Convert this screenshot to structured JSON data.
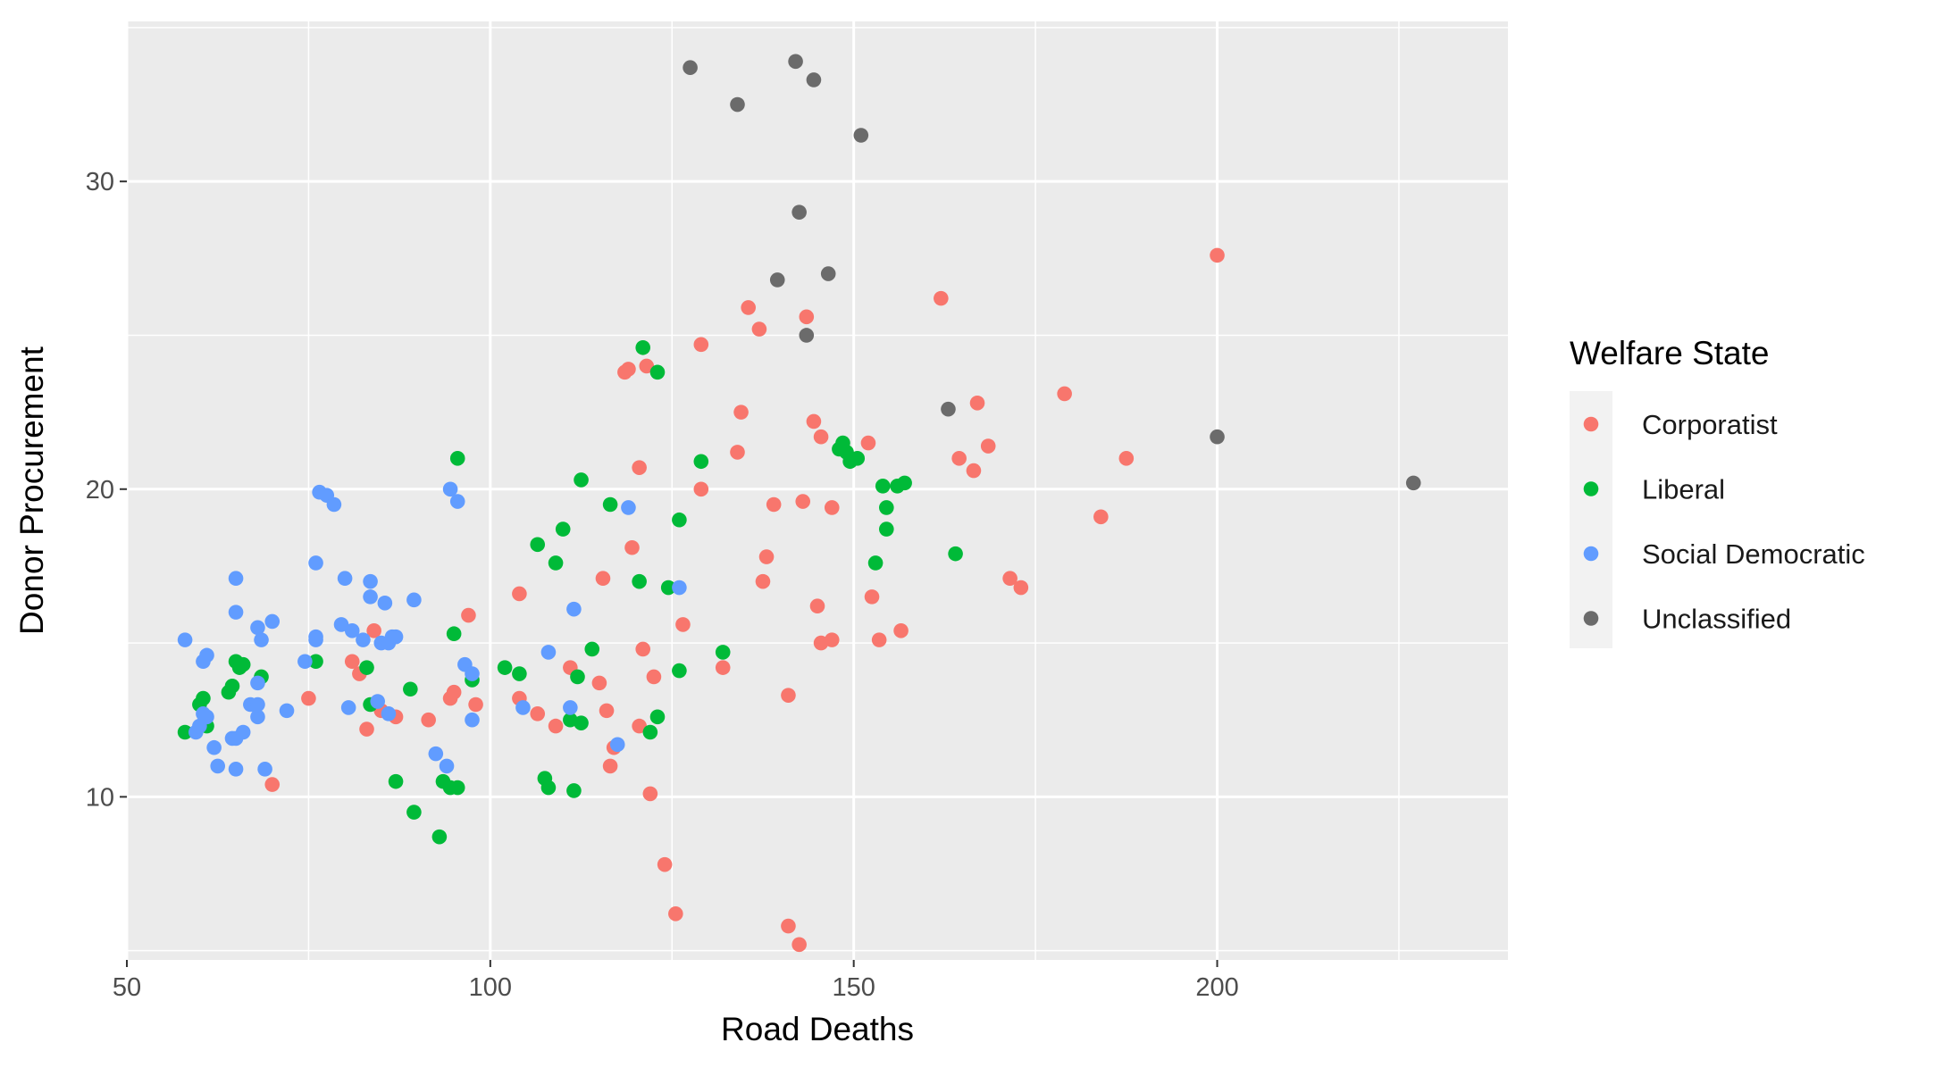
{
  "chart_data": {
    "type": "scatter",
    "xlabel": "Road Deaths",
    "ylabel": "Donor Procurement",
    "xlim": [
      50,
      240
    ],
    "ylim": [
      4.7,
      35.2
    ],
    "x_ticks": [
      50,
      100,
      150,
      200
    ],
    "y_ticks": [
      10,
      20,
      30
    ],
    "grid": true,
    "legend": {
      "title": "Welfare State",
      "position": "right"
    },
    "colors": {
      "panel": "#EBEBEB",
      "grid_major": "#FFFFFF",
      "grid_minor": "#F5F5F5",
      "Corporatist": "#F8766D",
      "Liberal": "#00BA38",
      "Social Democratic": "#619CFF",
      "Unclassified": "#6B6B6B"
    },
    "series": [
      {
        "name": "Corporatist",
        "points": [
          [
            70,
            10.4
          ],
          [
            75,
            13.2
          ],
          [
            81,
            14.4
          ],
          [
            82,
            14.0
          ],
          [
            83,
            12.2
          ],
          [
            84,
            15.4
          ],
          [
            85,
            12.8
          ],
          [
            87,
            12.6
          ],
          [
            91.5,
            12.5
          ],
          [
            94.5,
            13.2
          ],
          [
            95,
            13.4
          ],
          [
            97,
            15.9
          ],
          [
            98,
            13.0
          ],
          [
            104,
            16.6
          ],
          [
            104,
            13.2
          ],
          [
            106.5,
            12.7
          ],
          [
            109,
            12.3
          ],
          [
            111,
            14.2
          ],
          [
            115,
            13.7
          ],
          [
            115.5,
            17.1
          ],
          [
            116,
            12.8
          ],
          [
            116.5,
            11.0
          ],
          [
            117,
            11.6
          ],
          [
            118.5,
            23.8
          ],
          [
            119,
            23.9
          ],
          [
            119.5,
            18.1
          ],
          [
            120.5,
            20.7
          ],
          [
            120.5,
            12.3
          ],
          [
            121,
            14.8
          ],
          [
            121.5,
            24.0
          ],
          [
            122,
            10.1
          ],
          [
            122.5,
            13.9
          ],
          [
            124,
            7.8
          ],
          [
            125.5,
            6.2
          ],
          [
            126.5,
            15.6
          ],
          [
            129,
            24.7
          ],
          [
            129,
            20.0
          ],
          [
            132,
            14.2
          ],
          [
            134,
            21.2
          ],
          [
            134.5,
            22.5
          ],
          [
            135.5,
            25.9
          ],
          [
            137,
            25.2
          ],
          [
            137.5,
            17.0
          ],
          [
            138,
            17.8
          ],
          [
            139,
            19.5
          ],
          [
            141,
            13.3
          ],
          [
            141,
            5.8
          ],
          [
            142.5,
            5.2
          ],
          [
            143,
            19.6
          ],
          [
            143.5,
            25.6
          ],
          [
            144.5,
            22.2
          ],
          [
            145,
            16.2
          ],
          [
            145.5,
            15.0
          ],
          [
            145.5,
            21.7
          ],
          [
            147,
            19.4
          ],
          [
            147,
            15.1
          ],
          [
            152,
            21.5
          ],
          [
            152.5,
            16.5
          ],
          [
            153.5,
            15.1
          ],
          [
            156.5,
            15.4
          ],
          [
            162,
            26.2
          ],
          [
            164.5,
            21.0
          ],
          [
            166.5,
            20.6
          ],
          [
            167,
            22.8
          ],
          [
            168.5,
            21.4
          ],
          [
            171.5,
            17.1
          ],
          [
            173,
            16.8
          ],
          [
            179,
            23.1
          ],
          [
            184,
            19.1
          ],
          [
            187.5,
            21.0
          ],
          [
            200,
            27.6
          ]
        ]
      },
      {
        "name": "Liberal",
        "points": [
          [
            58,
            12.1
          ],
          [
            60,
            13.0
          ],
          [
            60.5,
            13.2
          ],
          [
            61,
            12.3
          ],
          [
            64,
            13.4
          ],
          [
            64.5,
            13.6
          ],
          [
            65,
            14.4
          ],
          [
            65.5,
            14.2
          ],
          [
            66,
            14.3
          ],
          [
            68.5,
            13.9
          ],
          [
            76,
            14.4
          ],
          [
            83,
            14.2
          ],
          [
            83.5,
            13.0
          ],
          [
            87,
            10.5
          ],
          [
            89,
            13.5
          ],
          [
            89.5,
            9.5
          ],
          [
            93,
            8.7
          ],
          [
            93.5,
            10.5
          ],
          [
            94.5,
            10.3
          ],
          [
            95,
            15.3
          ],
          [
            95.5,
            10.3
          ],
          [
            95.5,
            21.0
          ],
          [
            97.5,
            13.8
          ],
          [
            102,
            14.2
          ],
          [
            104,
            14.0
          ],
          [
            106.5,
            18.2
          ],
          [
            107.5,
            10.6
          ],
          [
            108,
            10.3
          ],
          [
            109,
            17.6
          ],
          [
            110,
            18.7
          ],
          [
            111,
            12.5
          ],
          [
            111.5,
            10.2
          ],
          [
            112,
            13.9
          ],
          [
            112.5,
            20.3
          ],
          [
            112.5,
            12.4
          ],
          [
            114,
            14.8
          ],
          [
            116.5,
            19.5
          ],
          [
            120.5,
            17.0
          ],
          [
            121,
            24.6
          ],
          [
            122,
            12.1
          ],
          [
            123,
            12.6
          ],
          [
            123,
            23.8
          ],
          [
            124.5,
            16.8
          ],
          [
            126,
            14.1
          ],
          [
            126,
            19.0
          ],
          [
            129,
            20.9
          ],
          [
            132,
            14.7
          ],
          [
            148,
            21.3
          ],
          [
            148.5,
            21.5
          ],
          [
            149,
            21.2
          ],
          [
            149.5,
            20.9
          ],
          [
            150.5,
            21.0
          ],
          [
            153,
            17.6
          ],
          [
            154,
            20.1
          ],
          [
            154.5,
            18.7
          ],
          [
            154.5,
            19.4
          ],
          [
            156,
            20.1
          ],
          [
            157,
            20.2
          ],
          [
            164,
            17.9
          ]
        ]
      },
      {
        "name": "Social Democratic",
        "points": [
          [
            58,
            15.1
          ],
          [
            59.5,
            12.1
          ],
          [
            60,
            12.3
          ],
          [
            60.5,
            12.7
          ],
          [
            60.5,
            14.4
          ],
          [
            61,
            14.6
          ],
          [
            61,
            12.6
          ],
          [
            62,
            11.6
          ],
          [
            62.5,
            11.0
          ],
          [
            64.5,
            11.9
          ],
          [
            65,
            17.1
          ],
          [
            65,
            16.0
          ],
          [
            65,
            11.9
          ],
          [
            65,
            10.9
          ],
          [
            66,
            12.1
          ],
          [
            67,
            13.0
          ],
          [
            68,
            12.6
          ],
          [
            68,
            13.7
          ],
          [
            68,
            13.0
          ],
          [
            68,
            15.5
          ],
          [
            68.5,
            15.1
          ],
          [
            69,
            10.9
          ],
          [
            70,
            15.7
          ],
          [
            72,
            12.8
          ],
          [
            74.5,
            14.4
          ],
          [
            76,
            15.2
          ],
          [
            76,
            17.6
          ],
          [
            76,
            15.1
          ],
          [
            76.5,
            19.9
          ],
          [
            77.5,
            19.8
          ],
          [
            78.5,
            19.5
          ],
          [
            79.5,
            15.6
          ],
          [
            80,
            17.1
          ],
          [
            80.5,
            12.9
          ],
          [
            81,
            15.4
          ],
          [
            82.5,
            15.1
          ],
          [
            83.5,
            17.0
          ],
          [
            83.5,
            16.5
          ],
          [
            84.5,
            13.1
          ],
          [
            85,
            15.0
          ],
          [
            85.5,
            16.3
          ],
          [
            86,
            15.0
          ],
          [
            86,
            12.7
          ],
          [
            86.5,
            15.2
          ],
          [
            87,
            15.2
          ],
          [
            89.5,
            16.4
          ],
          [
            92.5,
            11.4
          ],
          [
            94,
            11.0
          ],
          [
            94.5,
            20.0
          ],
          [
            95.5,
            19.6
          ],
          [
            96.5,
            14.3
          ],
          [
            97.5,
            14.0
          ],
          [
            97.5,
            12.5
          ],
          [
            104.5,
            12.9
          ],
          [
            108,
            14.7
          ],
          [
            111,
            12.9
          ],
          [
            111.5,
            16.1
          ],
          [
            117.5,
            11.7
          ],
          [
            119,
            19.4
          ],
          [
            126,
            16.8
          ]
        ]
      },
      {
        "name": "Unclassified",
        "points": [
          [
            127.5,
            33.7
          ],
          [
            134,
            32.5
          ],
          [
            139.5,
            26.8
          ],
          [
            142,
            33.9
          ],
          [
            142.5,
            29.0
          ],
          [
            143.5,
            25.0
          ],
          [
            144.5,
            33.3
          ],
          [
            146.5,
            27.0
          ],
          [
            151,
            31.5
          ],
          [
            163,
            22.6
          ],
          [
            200,
            21.7
          ],
          [
            227,
            20.2
          ]
        ]
      }
    ]
  }
}
